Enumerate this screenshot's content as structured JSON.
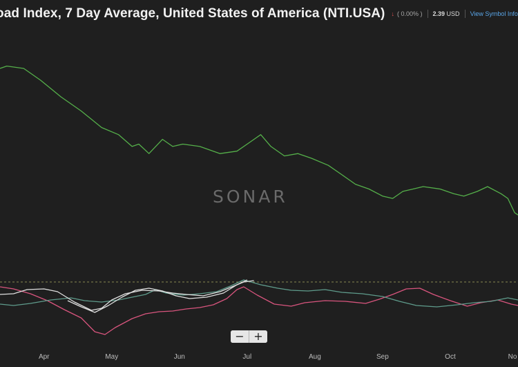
{
  "header": {
    "title": "oad Index, 7 Day Average, United States of America (NTI.USA)",
    "change_arrow": "↓",
    "change": "( 0.00% )",
    "price_value": "2.39",
    "price_unit": "USD",
    "link": "View Symbol Info"
  },
  "watermark": "SONAR",
  "zoom": {
    "minus": "−",
    "plus": "+"
  },
  "colors": {
    "background": "#1f1f1f",
    "main_series": "#55b04a",
    "pink_series": "#d9557e",
    "teal_series": "#5f9c8c",
    "white_series": "#e0e0e0",
    "reference_line": "#8a8a52"
  },
  "chart_data": {
    "type": "line",
    "title": "oad Index, 7 Day Average, United States of America (NTI.USA)",
    "x_ticks": [
      "Apr",
      "May",
      "Jun",
      "Jul",
      "Aug",
      "Sep",
      "Oct",
      "No"
    ],
    "x_tick_month_index": [
      1,
      2,
      3,
      4,
      5,
      6,
      7,
      8
    ],
    "xlim_month_index": [
      0.35,
      8.0
    ],
    "grid": false,
    "legend": "none",
    "main_panel": {
      "ylim": [
        0,
        100
      ],
      "series": [
        {
          "color": "#55b04a",
          "points": [
            [
              0.35,
              88
            ],
            [
              0.45,
              89
            ],
            [
              0.7,
              88
            ],
            [
              0.95,
              83
            ],
            [
              1.25,
              76
            ],
            [
              1.55,
              70
            ],
            [
              1.85,
              63
            ],
            [
              2.1,
              60
            ],
            [
              2.3,
              55
            ],
            [
              2.4,
              56
            ],
            [
              2.55,
              52
            ],
            [
              2.75,
              58
            ],
            [
              2.9,
              55
            ],
            [
              3.05,
              56
            ],
            [
              3.3,
              55
            ],
            [
              3.6,
              52
            ],
            [
              3.85,
              53
            ],
            [
              4.05,
              57
            ],
            [
              4.2,
              60
            ],
            [
              4.35,
              55
            ],
            [
              4.55,
              51
            ],
            [
              4.75,
              52
            ],
            [
              4.95,
              50
            ],
            [
              5.2,
              47
            ],
            [
              5.4,
              43
            ],
            [
              5.6,
              39
            ],
            [
              5.8,
              37
            ],
            [
              6.0,
              34
            ],
            [
              6.15,
              33
            ],
            [
              6.3,
              36
            ],
            [
              6.45,
              37
            ],
            [
              6.6,
              38
            ],
            [
              6.85,
              37
            ],
            [
              7.05,
              35
            ],
            [
              7.2,
              34
            ],
            [
              7.4,
              36
            ],
            [
              7.55,
              38
            ],
            [
              7.75,
              35
            ],
            [
              7.85,
              33
            ],
            [
              7.95,
              27
            ],
            [
              8.0,
              26
            ]
          ]
        }
      ]
    },
    "lower_panel": {
      "ylim": [
        0,
        100
      ],
      "reference_value": 100,
      "series": [
        {
          "color": "#d9557e",
          "points": [
            [
              0.35,
              85
            ],
            [
              0.55,
              82
            ],
            [
              0.8,
              75
            ],
            [
              1.05,
              65
            ],
            [
              1.3,
              52
            ],
            [
              1.55,
              40
            ],
            [
              1.75,
              20
            ],
            [
              1.9,
              16
            ],
            [
              2.05,
              26
            ],
            [
              2.3,
              39
            ],
            [
              2.5,
              46
            ],
            [
              2.7,
              49
            ],
            [
              2.9,
              50
            ],
            [
              3.1,
              53
            ],
            [
              3.3,
              55
            ],
            [
              3.5,
              59
            ],
            [
              3.7,
              68
            ],
            [
              3.85,
              81
            ],
            [
              3.95,
              85
            ],
            [
              4.15,
              73
            ],
            [
              4.4,
              60
            ],
            [
              4.65,
              57
            ],
            [
              4.85,
              62
            ],
            [
              5.15,
              65
            ],
            [
              5.45,
              64
            ],
            [
              5.75,
              61
            ],
            [
              5.95,
              67
            ],
            [
              6.15,
              74
            ],
            [
              6.35,
              82
            ],
            [
              6.55,
              83
            ],
            [
              6.75,
              74
            ],
            [
              7.0,
              65
            ],
            [
              7.25,
              57
            ],
            [
              7.45,
              62
            ],
            [
              7.7,
              66
            ],
            [
              7.9,
              60
            ],
            [
              8.0,
              58
            ]
          ]
        },
        {
          "color": "#5f9c8c",
          "points": [
            [
              0.35,
              60
            ],
            [
              0.55,
              58
            ],
            [
              0.8,
              61
            ],
            [
              1.1,
              66
            ],
            [
              1.4,
              69
            ],
            [
              1.6,
              65
            ],
            [
              1.85,
              63
            ],
            [
              2.1,
              66
            ],
            [
              2.3,
              70
            ],
            [
              2.5,
              74
            ],
            [
              2.65,
              81
            ],
            [
              2.8,
              76
            ],
            [
              3.05,
              73
            ],
            [
              3.3,
              75
            ],
            [
              3.55,
              78
            ],
            [
              3.75,
              86
            ],
            [
              3.95,
              95
            ],
            [
              4.2,
              88
            ],
            [
              4.45,
              83
            ],
            [
              4.65,
              80
            ],
            [
              4.9,
              79
            ],
            [
              5.15,
              81
            ],
            [
              5.4,
              77
            ],
            [
              5.7,
              75
            ],
            [
              6.0,
              71
            ],
            [
              6.25,
              64
            ],
            [
              6.5,
              58
            ],
            [
              6.8,
              56
            ],
            [
              7.1,
              59
            ],
            [
              7.35,
              62
            ],
            [
              7.6,
              64
            ],
            [
              7.85,
              69
            ],
            [
              8.0,
              66
            ]
          ]
        },
        {
          "color": "#e0e0e0",
          "points": [
            [
              0.35,
              74
            ],
            [
              0.55,
              75
            ],
            [
              0.75,
              81
            ],
            [
              1.0,
              82
            ],
            [
              1.2,
              78
            ],
            [
              1.45,
              63
            ],
            [
              1.7,
              51
            ],
            [
              1.85,
              54
            ],
            [
              2.0,
              66
            ],
            [
              2.2,
              75
            ],
            [
              2.45,
              80
            ],
            [
              2.7,
              79
            ],
            [
              2.9,
              76
            ],
            [
              3.1,
              74
            ],
            [
              3.35,
              72
            ],
            [
              3.6,
              78
            ],
            [
              3.8,
              86
            ],
            [
              3.95,
              92
            ],
            [
              4.1,
              94
            ]
          ]
        },
        {
          "color": "#e0e0e0",
          "points": [
            [
              1.35,
              65
            ],
            [
              1.55,
              56
            ],
            [
              1.75,
              48
            ],
            [
              1.95,
              58
            ],
            [
              2.15,
              70
            ],
            [
              2.35,
              80
            ],
            [
              2.55,
              83
            ],
            [
              2.75,
              79
            ],
            [
              2.95,
              72
            ],
            [
              3.15,
              68
            ],
            [
              3.4,
              70
            ],
            [
              3.65,
              76
            ],
            [
              3.85,
              88
            ],
            [
              4.0,
              95
            ]
          ]
        }
      ]
    }
  }
}
